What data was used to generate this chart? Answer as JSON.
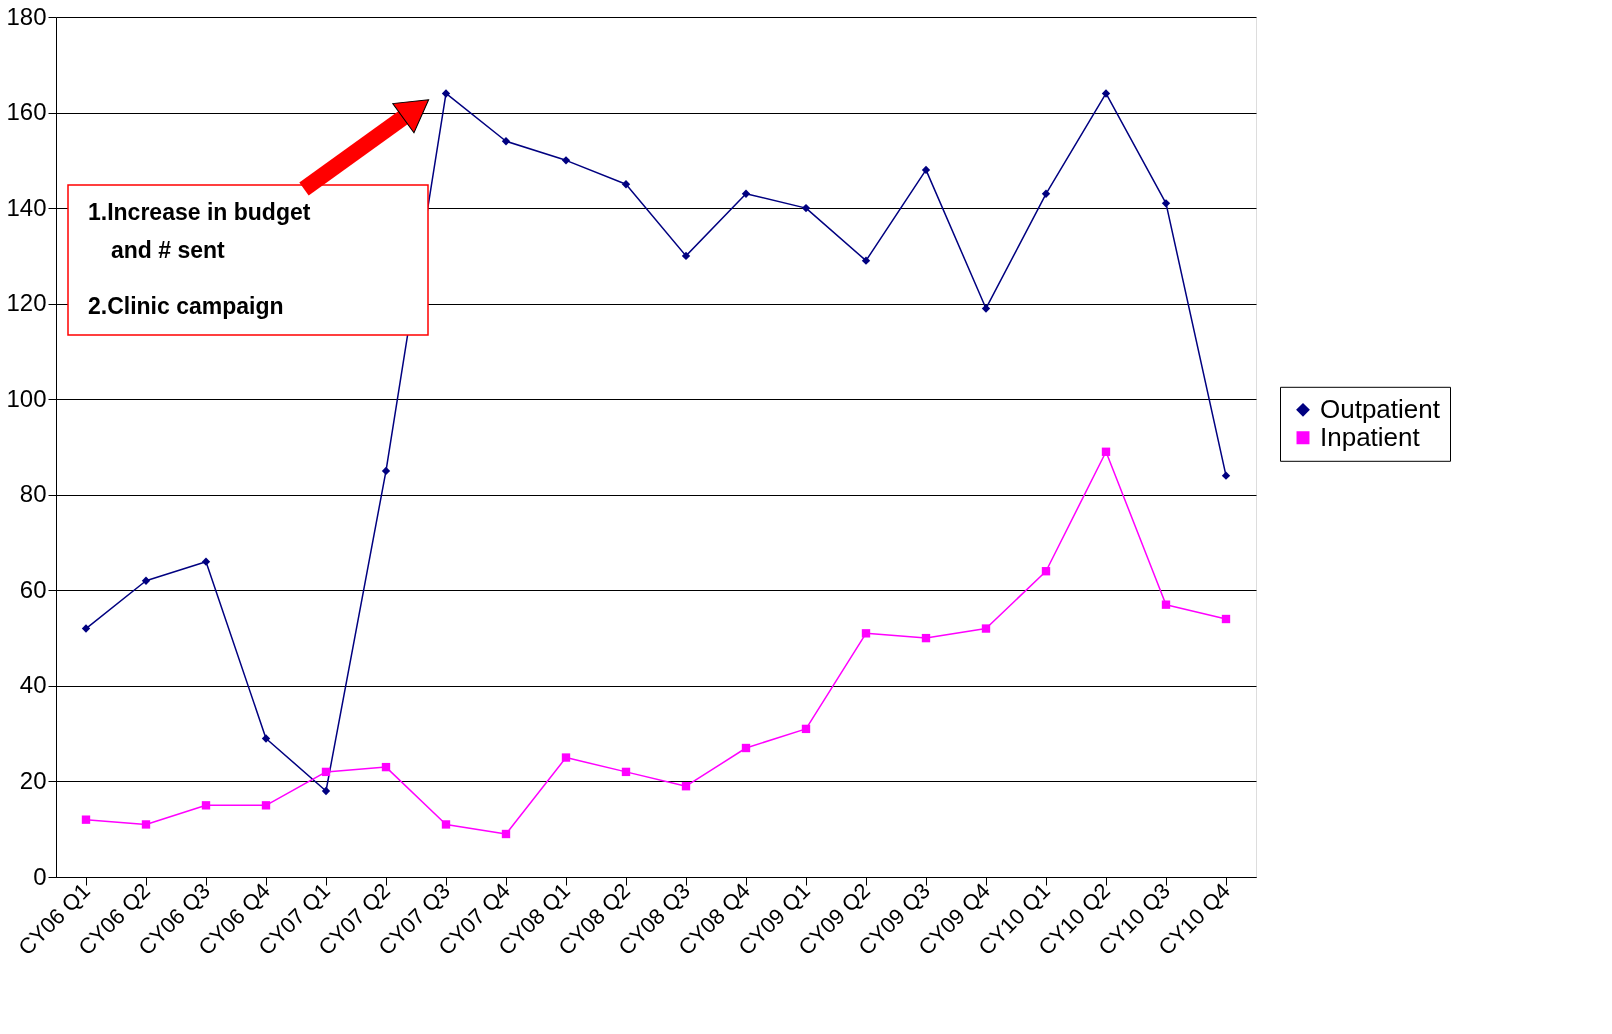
{
  "chart_data": {
    "type": "line",
    "categories": [
      "CY06 Q1",
      "CY06 Q2",
      "CY06 Q3",
      "CY06 Q4",
      "CY07 Q1",
      "CY07 Q2",
      "CY07 Q3",
      "CY07 Q4",
      "CY08 Q1",
      "CY08 Q2",
      "CY08 Q3",
      "CY08 Q4",
      "CY09 Q1",
      "CY09 Q2",
      "CY09 Q3",
      "CY09 Q4",
      "CY10 Q1",
      "CY10 Q2",
      "CY10 Q3",
      "CY10 Q4"
    ],
    "series": [
      {
        "name": "Outpatient",
        "color": "#000080",
        "marker": "diamond",
        "values": [
          52,
          62,
          66,
          29,
          18,
          85,
          164,
          154,
          150,
          145,
          130,
          143,
          140,
          129,
          148,
          119,
          143,
          164,
          141,
          84
        ]
      },
      {
        "name": "Inpatient",
        "color": "#ff00ff",
        "marker": "square",
        "values": [
          12,
          11,
          15,
          15,
          22,
          23,
          11,
          9,
          25,
          22,
          19,
          27,
          31,
          51,
          50,
          52,
          64,
          89,
          57,
          54
        ]
      }
    ],
    "ylim": [
      0,
      180
    ],
    "yticks": [
      0,
      20,
      40,
      60,
      80,
      100,
      120,
      140,
      160,
      180
    ],
    "grid": "y",
    "legend": "right",
    "annotations": [
      "1.Increase in budget\nand # sent",
      "2.Clinic campaign"
    ]
  }
}
